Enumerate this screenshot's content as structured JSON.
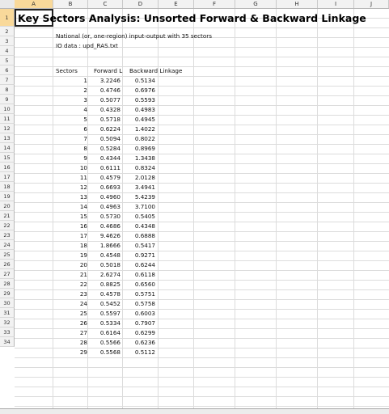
{
  "columns": [
    "A",
    "B",
    "C",
    "D",
    "E",
    "F",
    "G",
    "H",
    "I",
    "J"
  ],
  "selected_column": "A",
  "rows": [
    "1",
    "2",
    "3",
    "4",
    "5",
    "6",
    "7",
    "8",
    "9",
    "10",
    "11",
    "12",
    "13",
    "14",
    "15",
    "16",
    "17",
    "18",
    "19",
    "20",
    "21",
    "22",
    "23",
    "24",
    "25",
    "26",
    "27",
    "28",
    "29",
    "30",
    "31",
    "32",
    "33",
    "34"
  ],
  "title": "Key Sectors Analysis: Unsorted Forward & Backward Linkage",
  "subtitle": "National (or, one-region) input-output with  35 sectors",
  "io_data": "IO data : upd_RAS.txt",
  "headers": {
    "sectors": "Sectors",
    "forward": "Forward L",
    "backward": "Backward Linkage"
  },
  "table": [
    [
      "1",
      "3.2246",
      "0.5134"
    ],
    [
      "2",
      "0.4746",
      "0.6976"
    ],
    [
      "3",
      "0.5077",
      "0.5593"
    ],
    [
      "4",
      "0.4328",
      "0.4983"
    ],
    [
      "5",
      "0.5718",
      "0.4945"
    ],
    [
      "6",
      "0.6224",
      "1.4022"
    ],
    [
      "7",
      "0.5094",
      "0.8022"
    ],
    [
      "8",
      "0.5284",
      "0.8969"
    ],
    [
      "9",
      "0.4344",
      "1.3438"
    ],
    [
      "10",
      "0.6111",
      "0.8324"
    ],
    [
      "11",
      "0.4579",
      "2.0128"
    ],
    [
      "12",
      "0.6693",
      "3.4941"
    ],
    [
      "13",
      "0.4960",
      "5.4239"
    ],
    [
      "14",
      "0.4963",
      "3.7100"
    ],
    [
      "15",
      "0.5730",
      "0.5405"
    ],
    [
      "16",
      "0.4686",
      "0.4348"
    ],
    [
      "17",
      "9.4626",
      "0.6888"
    ],
    [
      "18",
      "1.8666",
      "0.5417"
    ],
    [
      "19",
      "0.4548",
      "0.9271"
    ],
    [
      "20",
      "0.5018",
      "0.6244"
    ],
    [
      "21",
      "2.6274",
      "0.6118"
    ],
    [
      "22",
      "0.8825",
      "0.6560"
    ],
    [
      "23",
      "0.4578",
      "0.5751"
    ],
    [
      "24",
      "0.5452",
      "0.5758"
    ],
    [
      "25",
      "0.5597",
      "0.6003"
    ],
    [
      "26",
      "0.5334",
      "0.7907"
    ],
    [
      "27",
      "0.6164",
      "0.6299"
    ],
    [
      "28",
      "0.5566",
      "0.6236"
    ],
    [
      "29",
      "0.5568",
      "0.5112"
    ]
  ]
}
